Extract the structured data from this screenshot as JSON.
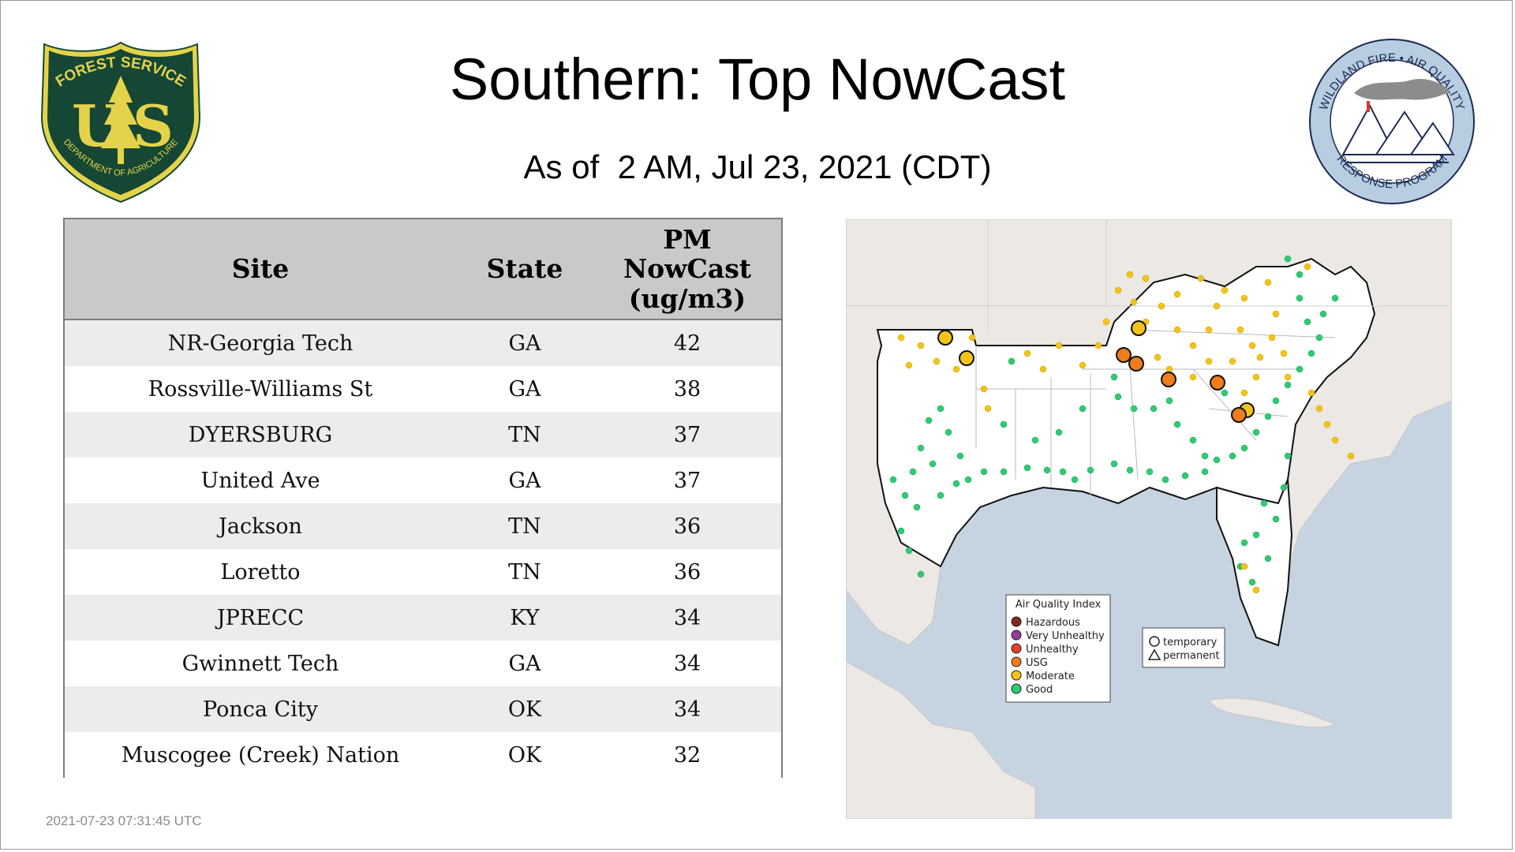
{
  "page": {
    "title": "Southern: Top NowCast",
    "subtitle": "As of  2 AM, Jul 23, 2021 (CDT)",
    "timestamp": "2021-07-23 07:31:45 UTC"
  },
  "logos": {
    "forest_service": {
      "top_text": "FOREST SERVICE",
      "letters": "US",
      "bottom_text": "DEPARTMENT OF AGRICULTURE",
      "colors": {
        "green": "#154734",
        "gold": "#e4d34a"
      }
    },
    "wfaq": {
      "top_text": "WILDLAND FIRE • AIR QUALITY",
      "bottom_text": "RESPONSE PROGRAM",
      "colors": {
        "ring": "#b8cde0",
        "navy": "#1c2a55"
      }
    }
  },
  "table": {
    "headers": {
      "site": "Site",
      "state": "State",
      "value_1": "PM",
      "value_2": "NowCast",
      "value_3": "(ug/m3)"
    },
    "rows": [
      {
        "site": "NR-Georgia Tech",
        "state": "GA",
        "value": "42"
      },
      {
        "site": "Rossville-Williams St",
        "state": "GA",
        "value": "38"
      },
      {
        "site": "DYERSBURG",
        "state": "TN",
        "value": "37"
      },
      {
        "site": "United Ave",
        "state": "GA",
        "value": "37"
      },
      {
        "site": "Jackson",
        "state": "TN",
        "value": "36"
      },
      {
        "site": "Loretto",
        "state": "TN",
        "value": "36"
      },
      {
        "site": "JPRECC",
        "state": "KY",
        "value": "34"
      },
      {
        "site": "Gwinnett Tech",
        "state": "GA",
        "value": "34"
      },
      {
        "site": "Ponca City",
        "state": "OK",
        "value": "34"
      },
      {
        "site": "Muscogee (Creek) Nation",
        "state": "OK",
        "value": "32"
      }
    ]
  },
  "map": {
    "legend": {
      "title": "Air Quality Index",
      "items": [
        {
          "label": "Hazardous",
          "color": "#7e2a1e"
        },
        {
          "label": "Very Unhealthy",
          "color": "#8f3f97"
        },
        {
          "label": "Unhealthy",
          "color": "#e8402c"
        },
        {
          "label": "USG",
          "color": "#f07d1a"
        },
        {
          "label": "Moderate",
          "color": "#f2c418"
        },
        {
          "label": "Good",
          "color": "#2ecc71"
        }
      ]
    },
    "shape_legend": {
      "temporary": "temporary",
      "permanent": "permanent"
    },
    "colors": {
      "water": "#c6d4e2",
      "land": "#ece8e4",
      "region": "#ffffff"
    }
  }
}
